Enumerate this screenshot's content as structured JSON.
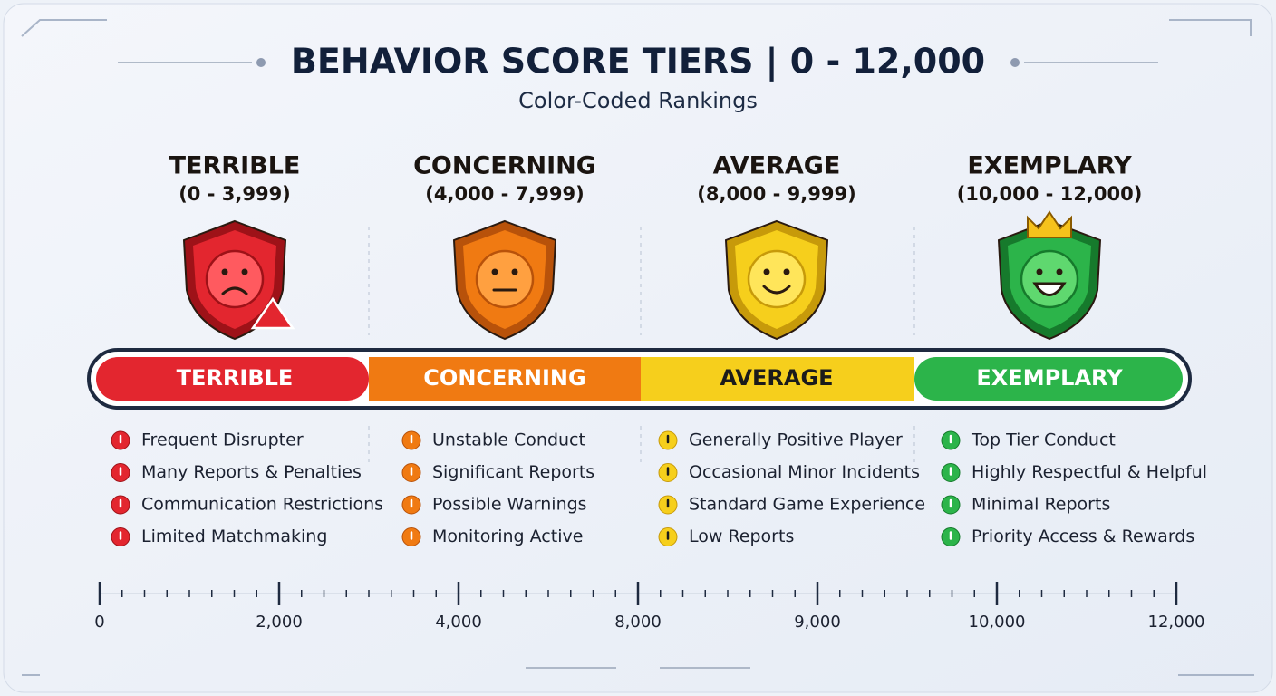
{
  "header": {
    "title": "BEHAVIOR SCORE TIERS | 0 - 12,000",
    "subtitle": "Color-Coded Rankings"
  },
  "tiers": [
    {
      "name": "TERRIBLE",
      "range": "(0 - 3,999)",
      "bar_label": "TERRIBLE",
      "items": [
        "Frequent Disrupter",
        "Many Reports & Penalties",
        "Communication Restrictions",
        "Limited Matchmaking"
      ]
    },
    {
      "name": "CONCERNING",
      "range": "(4,000 - 7,999)",
      "bar_label": "CONCERNING",
      "items": [
        "Unstable Conduct",
        "Significant Reports",
        "Possible Warnings",
        "Monitoring Active"
      ]
    },
    {
      "name": "AVERAGE",
      "range": "(8,000 - 9,999)",
      "bar_label": "AVERAGE",
      "items": [
        "Generally Positive Player",
        "Occasional Minor Incidents",
        "Standard Game Experience",
        "Low Reports"
      ]
    },
    {
      "name": "EXEMPLARY",
      "range": "(10,000 - 12,000)",
      "bar_label": "EXEMPLARY",
      "items": [
        "Top Tier Conduct",
        "Highly Respectful & Helpful",
        "Minimal Reports",
        "Priority Access & Rewards"
      ]
    }
  ],
  "scale": {
    "labels": [
      "0",
      "2,000",
      "4,000",
      "8,000",
      "9,000",
      "10,000",
      "12,000"
    ]
  }
}
